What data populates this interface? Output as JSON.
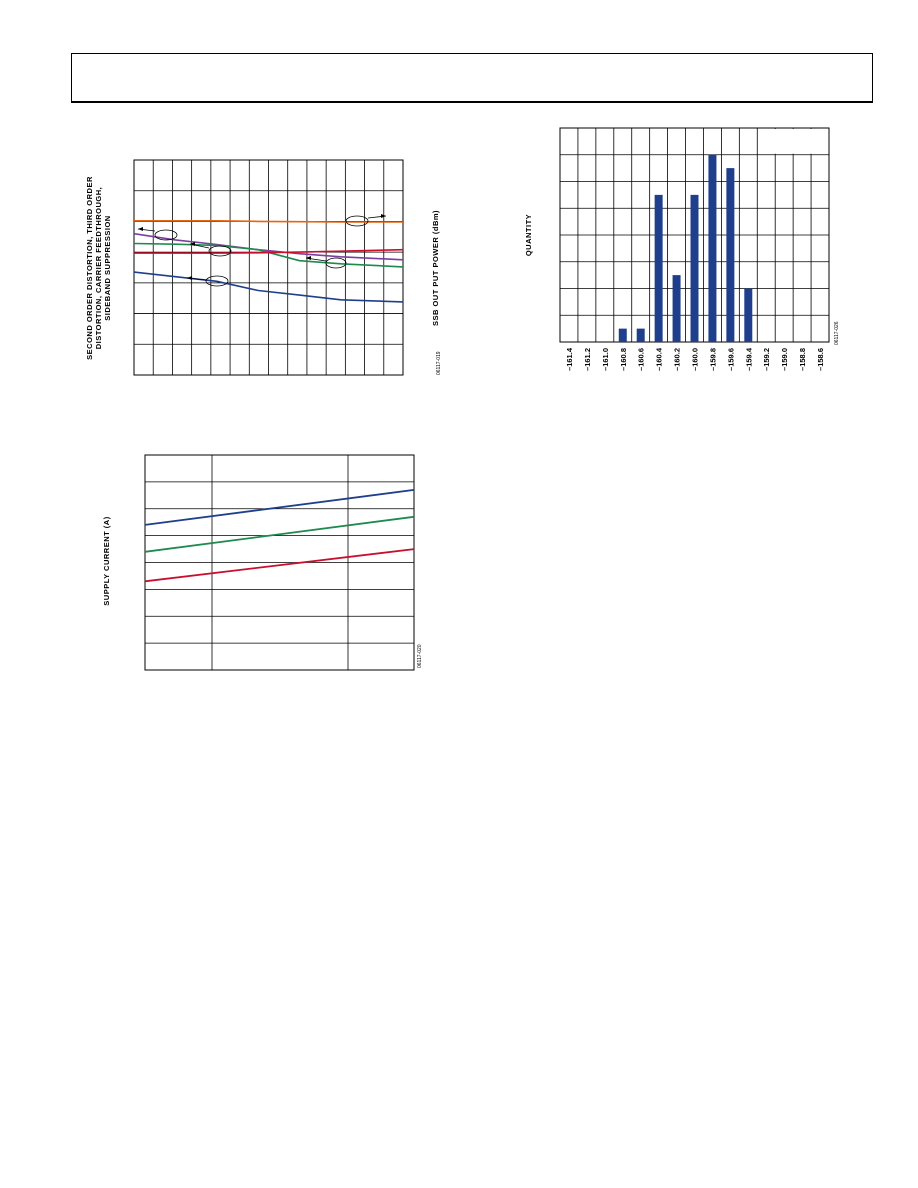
{
  "chart_data": [
    {
      "type": "line",
      "ylabel_lines": [
        "SECOND ORDER DISTORTION, THIRD ORDER",
        "DISTORTION, CARRIER FEEDTHROUGH,",
        "SIDEBAND SUPPRESSION"
      ],
      "y2label": "SSB OUT PUT POWER (dBm)",
      "figure_id": "06117-019",
      "xlim": [
        0,
        13
      ],
      "ylim": [
        0,
        7
      ],
      "grid": true,
      "series": [
        {
          "color": "#E8650F",
          "x": [
            0,
            4,
            6,
            8,
            10,
            13
          ],
          "y": [
            5.02,
            5.02,
            5.0,
            4.99,
            4.98,
            4.98
          ]
        },
        {
          "color": "#7B3F9E",
          "x": [
            0,
            2,
            4,
            6,
            8,
            10,
            13
          ],
          "y": [
            4.6,
            4.4,
            4.25,
            4.08,
            3.95,
            3.85,
            3.75
          ]
        },
        {
          "color": "#1E8A4F",
          "x": [
            0,
            2,
            4,
            6,
            7,
            8,
            10,
            13
          ],
          "y": [
            4.28,
            4.26,
            4.22,
            4.08,
            3.9,
            3.72,
            3.62,
            3.52
          ]
        },
        {
          "color": "#C8102E",
          "x": [
            0,
            4,
            6,
            8,
            10,
            13
          ],
          "y": [
            3.97,
            3.97,
            3.98,
            4.0,
            4.03,
            4.08
          ]
        },
        {
          "color": "#1F3F8C",
          "x": [
            0,
            2,
            4,
            6,
            8,
            10,
            13
          ],
          "y": [
            3.35,
            3.2,
            3.05,
            2.75,
            2.6,
            2.45,
            2.38
          ]
        }
      ]
    },
    {
      "type": "bar",
      "ylabel": "QUANTITY",
      "figure_id": "06117-026",
      "categories": [
        "–161.4",
        "–161.2",
        "–161.0",
        "–160.8",
        "–160.6",
        "–160.4",
        "–160.2",
        "–160.0",
        "–159.8",
        "–159.6",
        "–159.4",
        "–159.2",
        "–159.0",
        "–158.8",
        "–158.6"
      ],
      "values": [
        0,
        0,
        0,
        0.5,
        0.5,
        5.5,
        2.5,
        5.5,
        7,
        6.5,
        2,
        0,
        0,
        0,
        0
      ],
      "ylim": [
        0,
        8
      ],
      "color": "#1F3F8C",
      "grid": true
    },
    {
      "type": "line",
      "ylabel": "SUPPLY CURRENT (A)",
      "figure_id": "06117-020",
      "xlim": [
        0,
        1
      ],
      "ylim": [
        0,
        8
      ],
      "grid": true,
      "series": [
        {
          "color": "#1F3F8C",
          "x": [
            0,
            1
          ],
          "y": [
            5.4,
            6.7
          ]
        },
        {
          "color": "#1E8A4F",
          "x": [
            0,
            1
          ],
          "y": [
            4.4,
            5.7
          ]
        },
        {
          "color": "#C8102E",
          "x": [
            0,
            1
          ],
          "y": [
            3.3,
            4.5
          ]
        }
      ]
    }
  ]
}
